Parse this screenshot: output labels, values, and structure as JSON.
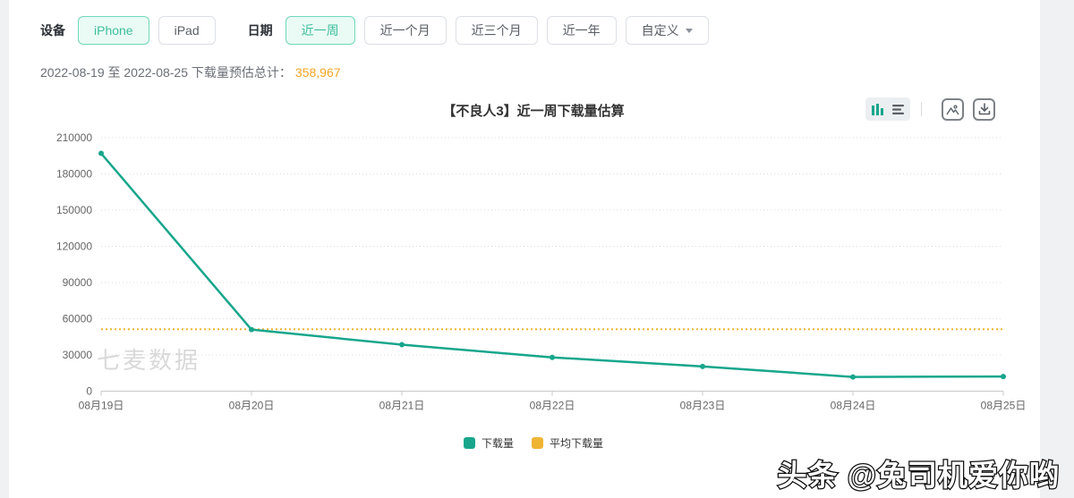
{
  "filters": {
    "device_label": "设备",
    "device_options": [
      {
        "label": "iPhone",
        "selected": true
      },
      {
        "label": "iPad",
        "selected": false
      }
    ],
    "date_label": "日期",
    "date_options": [
      {
        "label": "近一周",
        "selected": true
      },
      {
        "label": "近一个月",
        "selected": false
      },
      {
        "label": "近三个月",
        "selected": false
      },
      {
        "label": "近一年",
        "selected": false
      }
    ],
    "custom_label": "自定义"
  },
  "summary": {
    "prefix": "2022-08-19 至 2022-08-25 下载量预估总计：",
    "total": "358,967"
  },
  "chart_title": "【不良人3】近一周下载量估算",
  "toolbar": {
    "icons": [
      "bar-chart-icon",
      "list-icon",
      "image-export-icon",
      "download-icon"
    ]
  },
  "chart_data": {
    "type": "line",
    "title": "【不良人3】近一周下载量估算",
    "categories": [
      "08月19日",
      "08月20日",
      "08月21日",
      "08月22日",
      "08月23日",
      "08月24日",
      "08月25日"
    ],
    "series": [
      {
        "name": "下载量",
        "type": "line",
        "color": "#17a68c",
        "values": [
          197000,
          51000,
          38500,
          28000,
          20500,
          11800,
          12167
        ]
      },
      {
        "name": "平均下载量",
        "type": "average_line",
        "color": "#f0b434",
        "value": 51281
      }
    ],
    "total": 358967,
    "xlabel": "",
    "ylabel": "",
    "ylim": [
      0,
      210000
    ],
    "ytick_interval": 30000,
    "grid": "dotted-horizontal",
    "legend_position": "bottom"
  },
  "legend": {
    "items": [
      {
        "label": "下载量",
        "color": "#17a68c"
      },
      {
        "label": "平均下载量",
        "color": "#f0b434"
      }
    ]
  },
  "watermarks": {
    "chart": "七麦数据",
    "photo_credit": "头条 @兔司机爱你哟"
  }
}
